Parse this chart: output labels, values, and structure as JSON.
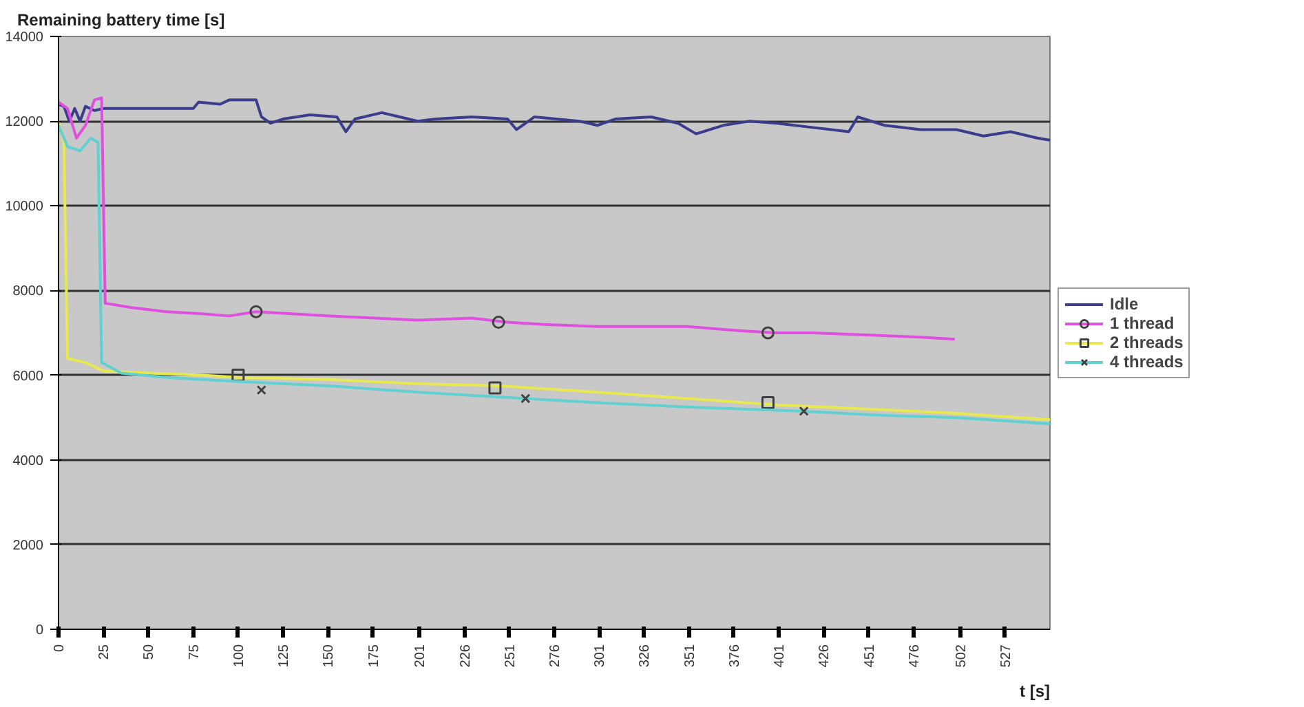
{
  "chart_data": {
    "type": "line",
    "ylabel": "Remaining battery time [s]",
    "xlabel": "t [s]",
    "xlim": [
      0,
      552
    ],
    "ylim": [
      0,
      14000
    ],
    "xticks": [
      0,
      25,
      50,
      75,
      100,
      125,
      150,
      175,
      201,
      226,
      251,
      276,
      301,
      326,
      351,
      376,
      401,
      426,
      451,
      476,
      502,
      527
    ],
    "yticks": [
      0,
      2000,
      4000,
      6000,
      8000,
      10000,
      12000,
      14000
    ],
    "grid": "y",
    "legend": "right",
    "series": [
      {
        "name": "Idle",
        "color": "#3c3c8c",
        "x": [
          0,
          3,
          6,
          9,
          12,
          15,
          20,
          25,
          75,
          78,
          90,
          95,
          110,
          113,
          118,
          125,
          140,
          155,
          160,
          165,
          180,
          190,
          200,
          210,
          230,
          250,
          255,
          265,
          290,
          300,
          310,
          330,
          345,
          355,
          370,
          385,
          400,
          420,
          440,
          445,
          460,
          480,
          500,
          515,
          530,
          545,
          552
        ],
        "values": [
          12400,
          12350,
          12000,
          12300,
          12000,
          12350,
          12250,
          12300,
          12300,
          12450,
          12400,
          12500,
          12500,
          12100,
          11950,
          12050,
          12150,
          12100,
          11750,
          12050,
          12200,
          12100,
          12000,
          12050,
          12100,
          12050,
          11800,
          12100,
          12000,
          11900,
          12050,
          12100,
          11950,
          11700,
          11900,
          12000,
          11950,
          11850,
          11750,
          12100,
          11900,
          11800,
          11800,
          11650,
          11750,
          11600,
          11550
        ]
      },
      {
        "name": "1 thread",
        "color": "#e050e0",
        "x": [
          0,
          5,
          10,
          15,
          20,
          24,
          26,
          40,
          60,
          80,
          95,
          110,
          150,
          200,
          230,
          250,
          270,
          300,
          350,
          380,
          400,
          420,
          450,
          480,
          499
        ],
        "values": [
          12450,
          12300,
          11600,
          11900,
          12500,
          12550,
          7700,
          7600,
          7500,
          7450,
          7400,
          7500,
          7400,
          7300,
          7350,
          7250,
          7200,
          7150,
          7150,
          7050,
          7000,
          7000,
          6950,
          6900,
          6850
        ]
      },
      {
        "type": "scatter",
        "marker": "circle",
        "color": "#404040",
        "x": [
          110,
          245,
          395
        ],
        "values": [
          7500,
          7250,
          7000
        ]
      },
      {
        "name": "2 threads",
        "color": "#e8e850",
        "x": [
          0,
          3,
          5,
          15,
          25,
          50,
          80,
          100,
          150,
          200,
          245,
          300,
          350,
          400,
          450,
          500,
          552
        ],
        "values": [
          12000,
          11500,
          6400,
          6300,
          6100,
          6050,
          6000,
          5950,
          5900,
          5800,
          5750,
          5600,
          5450,
          5300,
          5200,
          5100,
          4950
        ]
      },
      {
        "type": "scatter",
        "marker": "square",
        "color": "#404040",
        "x": [
          100,
          243,
          395
        ],
        "values": [
          6000,
          5700,
          5350
        ]
      },
      {
        "name": "4 threads",
        "color": "#60d0d0",
        "x": [
          0,
          5,
          12,
          18,
          22,
          24,
          35,
          60,
          100,
          150,
          200,
          260,
          300,
          350,
          415,
          460,
          500,
          552
        ],
        "values": [
          11900,
          11400,
          11300,
          11600,
          11500,
          6300,
          6050,
          5950,
          5850,
          5750,
          5600,
          5450,
          5350,
          5250,
          5150,
          5050,
          5000,
          4850
        ]
      },
      {
        "type": "scatter",
        "marker": "cross",
        "color": "#404040",
        "x": [
          113,
          260,
          415
        ],
        "values": [
          5650,
          5450,
          5150
        ]
      }
    ]
  }
}
